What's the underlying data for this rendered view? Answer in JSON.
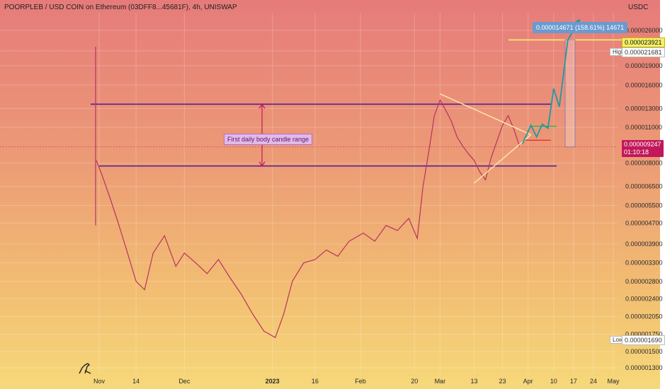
{
  "chart_data": {
    "type": "line",
    "title": "POORPLEB / USD COIN on Ethereum (03DFF8...45681F), 4h, UNISWAP",
    "currency": "USDC",
    "y_ticks": [
      "0.000026000",
      "0.000021681",
      "0.000019000",
      "0.000016000",
      "0.000013000",
      "0.000011000",
      "0.000008000",
      "0.000006500",
      "0.000005500",
      "0.000004700",
      "0.000003900",
      "0.000003300",
      "0.000002800",
      "0.000002400",
      "0.000002050",
      "0.000001750",
      "0.000001500",
      "0.000001300"
    ],
    "x_ticks": [
      "Nov",
      "14",
      "Dec",
      "2023",
      "16",
      "Feb",
      "20",
      "Mar",
      "13",
      "23",
      "Apr",
      "10",
      "17",
      "24",
      "May"
    ],
    "annotation_text": "First daily body candle range",
    "measure_text": "0.000014671 (158.61%) 14671",
    "target_price": "0.000023921",
    "high_label": "High",
    "high_price": "0.000021681",
    "current_price": "0.000009247",
    "countdown": "01:10:18",
    "low_label": "Low",
    "low_price": "0.000001690",
    "price_series": [
      {
        "date": "2022-10-31",
        "close": 8.2e-06
      },
      {
        "date": "2022-11-02",
        "close": 7.2e-06
      },
      {
        "date": "2022-11-05",
        "close": 5.8e-06
      },
      {
        "date": "2022-11-08",
        "close": 4.6e-06
      },
      {
        "date": "2022-11-11",
        "close": 3.6e-06
      },
      {
        "date": "2022-11-14",
        "close": 2.8e-06
      },
      {
        "date": "2022-11-17",
        "close": 2.6e-06
      },
      {
        "date": "2022-11-20",
        "close": 3.6e-06
      },
      {
        "date": "2022-11-24",
        "close": 4.2e-06
      },
      {
        "date": "2022-11-28",
        "close": 3.2e-06
      },
      {
        "date": "2022-12-01",
        "close": 3.6e-06
      },
      {
        "date": "2022-12-05",
        "close": 3.3e-06
      },
      {
        "date": "2022-12-09",
        "close": 3e-06
      },
      {
        "date": "2022-12-13",
        "close": 3.4e-06
      },
      {
        "date": "2022-12-17",
        "close": 2.9e-06
      },
      {
        "date": "2022-12-21",
        "close": 2.5e-06
      },
      {
        "date": "2022-12-25",
        "close": 2.1e-06
      },
      {
        "date": "2022-12-29",
        "close": 1.8e-06
      },
      {
        "date": "2023-01-02",
        "close": 1.7e-06
      },
      {
        "date": "2023-01-05",
        "close": 2.1e-06
      },
      {
        "date": "2023-01-08",
        "close": 2.8e-06
      },
      {
        "date": "2023-01-12",
        "close": 3.3e-06
      },
      {
        "date": "2023-01-16",
        "close": 3.4e-06
      },
      {
        "date": "2023-01-20",
        "close": 3.7e-06
      },
      {
        "date": "2023-01-24",
        "close": 3.5e-06
      },
      {
        "date": "2023-01-28",
        "close": 4e-06
      },
      {
        "date": "2023-02-02",
        "close": 4.3e-06
      },
      {
        "date": "2023-02-06",
        "close": 4e-06
      },
      {
        "date": "2023-02-10",
        "close": 4.6e-06
      },
      {
        "date": "2023-02-14",
        "close": 4.4e-06
      },
      {
        "date": "2023-02-18",
        "close": 4.9e-06
      },
      {
        "date": "2023-02-21",
        "close": 4.1e-06
      },
      {
        "date": "2023-02-23",
        "close": 6.5e-06
      },
      {
        "date": "2023-02-25",
        "close": 8.8e-06
      },
      {
        "date": "2023-02-27",
        "close": 1.22e-05
      },
      {
        "date": "2023-03-01",
        "close": 1.4e-05
      },
      {
        "date": "2023-03-03",
        "close": 1.28e-05
      },
      {
        "date": "2023-03-05",
        "close": 1.16e-05
      },
      {
        "date": "2023-03-07",
        "close": 1.01e-05
      },
      {
        "date": "2023-03-09",
        "close": 9.3e-06
      },
      {
        "date": "2023-03-11",
        "close": 8.7e-06
      },
      {
        "date": "2023-03-13",
        "close": 8.2e-06
      },
      {
        "date": "2023-03-15",
        "close": 7.4e-06
      },
      {
        "date": "2023-03-17",
        "close": 6.9e-06
      },
      {
        "date": "2023-03-19",
        "close": 8.4e-06
      },
      {
        "date": "2023-03-21",
        "close": 9.7e-06
      },
      {
        "date": "2023-03-23",
        "close": 1.12e-05
      },
      {
        "date": "2023-03-25",
        "close": 1.22e-05
      },
      {
        "date": "2023-03-27",
        "close": 1.08e-05
      },
      {
        "date": "2023-03-29",
        "close": 9.3e-06
      }
    ],
    "projection": [
      {
        "date": "2023-03-30",
        "close": 9.5e-06
      },
      {
        "date": "2023-04-02",
        "close": 1.12e-05
      },
      {
        "date": "2023-04-04",
        "close": 1.01e-05
      },
      {
        "date": "2023-04-06",
        "close": 1.13e-05
      },
      {
        "date": "2023-04-08",
        "close": 1.09e-05
      },
      {
        "date": "2023-04-10",
        "close": 1.55e-05
      },
      {
        "date": "2023-04-12",
        "close": 1.32e-05
      },
      {
        "date": "2023-04-15",
        "close": 2.39e-05
      },
      {
        "date": "2023-04-19",
        "close": 2.85e-05
      }
    ],
    "levels": {
      "upper": 1.35e-05,
      "lower": 7.8e-06,
      "target": 2.39e-05,
      "current": 9.247e-06
    },
    "triangle": {
      "top": [
        {
          "date": "2023-03-01",
          "close": 1.48e-05
        },
        {
          "date": "2023-04-02",
          "close": 1.03e-05
        }
      ],
      "bottom": [
        {
          "date": "2023-03-13",
          "close": 6.7e-06
        },
        {
          "date": "2023-04-02",
          "close": 1.03e-05
        }
      ]
    },
    "colors": {
      "level_line": "#5b1f91",
      "price": "#b83262",
      "triangle": "#ffe9a8",
      "projection": "#1e9aa2",
      "arrow_range": "#c2185b",
      "target_line": "#f4f06a",
      "short_level": "#e0342a",
      "green_level": "#3aa84a"
    }
  }
}
